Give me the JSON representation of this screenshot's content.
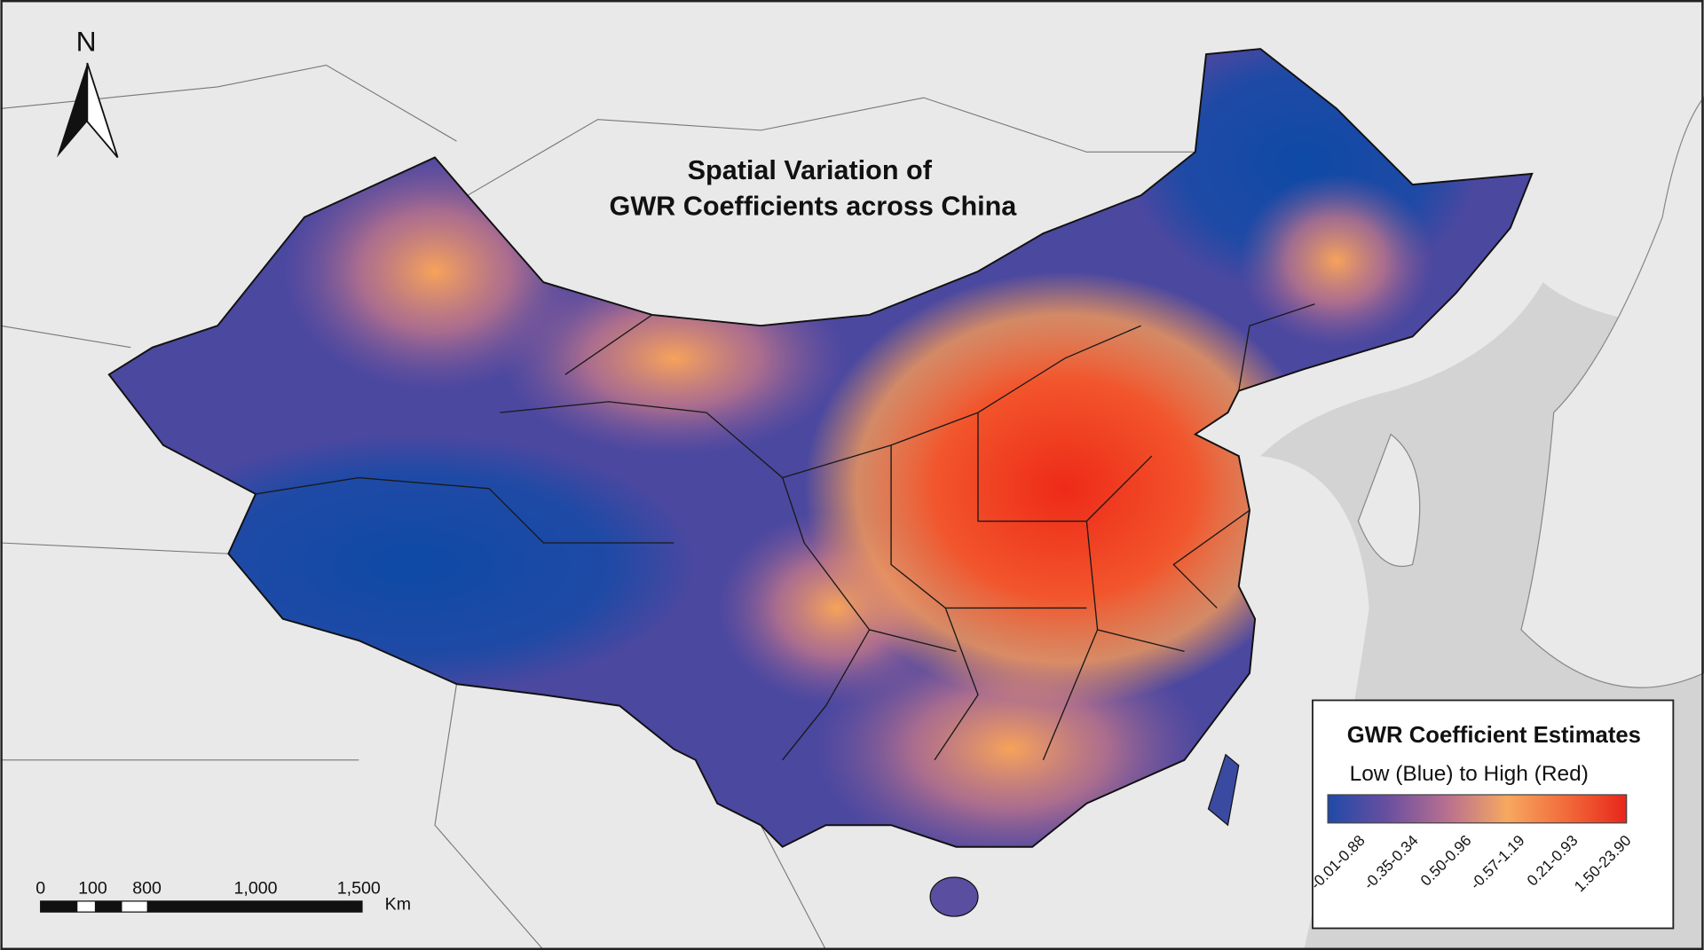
{
  "map": {
    "title": [
      "Spatial Variation of",
      "GWR Coefficients across China"
    ],
    "north": "N",
    "scale_bar": {
      "labels": [
        "0",
        "100",
        "800",
        "1,000",
        "1,500"
      ],
      "unit": "Km"
    },
    "legend": {
      "title": "GWR Coefficient Estimates",
      "subtitle": "Low (Blue) to High (Red)",
      "classes": [
        "-0.01-0.88",
        "-0.35-0.34",
        "0.50-0.96",
        "-0.57-1.19",
        "0.21-0.93",
        "1.50-23.90"
      ],
      "colors": [
        "#1f4aa8",
        "#6a4fa0",
        "#b8708f",
        "#f6a860",
        "#f26a3a",
        "#e8261a"
      ]
    }
  }
}
